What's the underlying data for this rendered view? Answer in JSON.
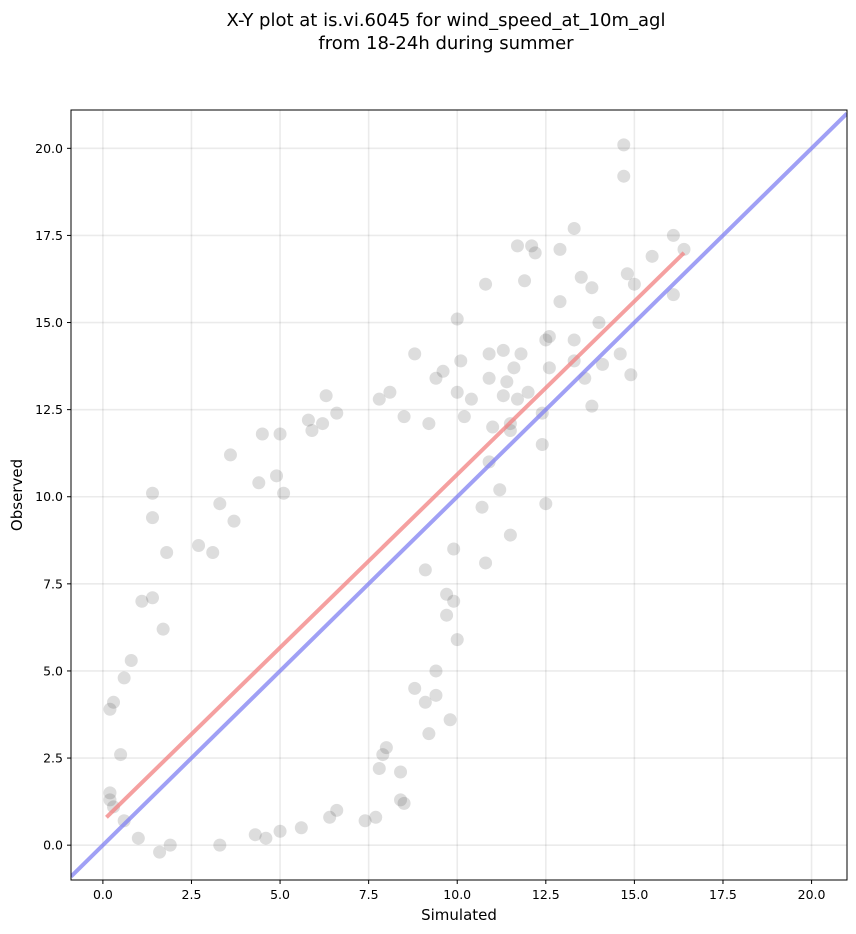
{
  "chart_data": {
    "type": "scatter",
    "title_lines": [
      "X-Y plot at is.vi.6045 for wind_speed_at_10m_agl",
      "from 18-24h during summer"
    ],
    "xlabel": "Simulated",
    "ylabel": "Observed",
    "xlim": [
      -0.9,
      21.0
    ],
    "ylim": [
      -1.0,
      21.1
    ],
    "xticks": [
      0.0,
      2.5,
      5.0,
      7.5,
      10.0,
      12.5,
      15.0,
      17.5,
      20.0
    ],
    "yticks": [
      0.0,
      2.5,
      5.0,
      7.5,
      10.0,
      12.5,
      15.0,
      17.5,
      20.0
    ],
    "xtick_labels": [
      "0.0",
      "2.5",
      "5.0",
      "7.5",
      "10.0",
      "12.5",
      "15.0",
      "17.5",
      "20.0"
    ],
    "ytick_labels": [
      "0.0",
      "2.5",
      "5.0",
      "7.5",
      "10.0",
      "12.5",
      "15.0",
      "17.5",
      "20.0"
    ],
    "grid": true,
    "point_color": "#444444",
    "fit_line": {
      "x": [
        0.1,
        16.4
      ],
      "y": [
        0.8,
        17.0
      ],
      "color": "#f28080"
    },
    "identity_line": {
      "x": [
        -0.9,
        21.0
      ],
      "y": [
        -0.9,
        21.0
      ],
      "color": "#8080f2"
    },
    "points": [
      [
        14.7,
        20.1
      ],
      [
        14.7,
        19.2
      ],
      [
        13.3,
        17.7
      ],
      [
        16.1,
        17.5
      ],
      [
        11.7,
        17.2
      ],
      [
        12.1,
        17.2
      ],
      [
        16.4,
        17.1
      ],
      [
        12.9,
        17.1
      ],
      [
        12.2,
        17.0
      ],
      [
        15.5,
        16.9
      ],
      [
        14.8,
        16.4
      ],
      [
        13.5,
        16.3
      ],
      [
        10.8,
        16.1
      ],
      [
        15.0,
        16.1
      ],
      [
        11.9,
        16.2
      ],
      [
        13.8,
        16.0
      ],
      [
        16.1,
        15.8
      ],
      [
        12.9,
        15.6
      ],
      [
        10.0,
        15.1
      ],
      [
        14.0,
        15.0
      ],
      [
        12.6,
        14.6
      ],
      [
        13.3,
        14.5
      ],
      [
        12.5,
        14.5
      ],
      [
        11.3,
        14.2
      ],
      [
        10.9,
        14.1
      ],
      [
        11.8,
        14.1
      ],
      [
        14.6,
        14.1
      ],
      [
        8.8,
        14.1
      ],
      [
        10.1,
        13.9
      ],
      [
        13.3,
        13.9
      ],
      [
        14.1,
        13.8
      ],
      [
        11.6,
        13.7
      ],
      [
        12.6,
        13.7
      ],
      [
        9.6,
        13.6
      ],
      [
        14.9,
        13.5
      ],
      [
        9.4,
        13.4
      ],
      [
        10.9,
        13.4
      ],
      [
        13.6,
        13.4
      ],
      [
        11.4,
        13.3
      ],
      [
        8.1,
        13.0
      ],
      [
        10.0,
        13.0
      ],
      [
        12.0,
        13.0
      ],
      [
        11.3,
        12.9
      ],
      [
        6.3,
        12.9
      ],
      [
        7.8,
        12.8
      ],
      [
        11.7,
        12.8
      ],
      [
        10.4,
        12.8
      ],
      [
        13.8,
        12.6
      ],
      [
        6.6,
        12.4
      ],
      [
        12.4,
        12.4
      ],
      [
        8.5,
        12.3
      ],
      [
        10.2,
        12.3
      ],
      [
        5.8,
        12.2
      ],
      [
        9.2,
        12.1
      ],
      [
        6.2,
        12.1
      ],
      [
        11.5,
        12.1
      ],
      [
        11.0,
        12.0
      ],
      [
        11.5,
        11.9
      ],
      [
        5.0,
        11.8
      ],
      [
        5.9,
        11.9
      ],
      [
        4.5,
        11.8
      ],
      [
        3.6,
        11.2
      ],
      [
        12.4,
        11.5
      ],
      [
        10.9,
        11.0
      ],
      [
        11.2,
        10.2
      ],
      [
        4.9,
        10.6
      ],
      [
        4.4,
        10.4
      ],
      [
        5.1,
        10.1
      ],
      [
        1.4,
        10.1
      ],
      [
        1.4,
        9.4
      ],
      [
        12.5,
        9.8
      ],
      [
        3.3,
        9.8
      ],
      [
        10.7,
        9.7
      ],
      [
        11.5,
        8.9
      ],
      [
        9.9,
        8.5
      ],
      [
        10.8,
        8.1
      ],
      [
        9.1,
        7.9
      ],
      [
        2.7,
        8.6
      ],
      [
        1.8,
        8.4
      ],
      [
        3.1,
        8.4
      ],
      [
        3.7,
        9.3
      ],
      [
        1.1,
        7.0
      ],
      [
        1.4,
        7.1
      ],
      [
        0.6,
        4.8
      ],
      [
        0.3,
        4.1
      ],
      [
        0.2,
        3.9
      ],
      [
        0.8,
        5.3
      ],
      [
        1.7,
        6.2
      ],
      [
        0.5,
        2.6
      ],
      [
        0.2,
        1.5
      ],
      [
        0.2,
        1.3
      ],
      [
        0.3,
        1.1
      ],
      [
        0.6,
        0.7
      ],
      [
        1.0,
        0.2
      ],
      [
        1.6,
        -0.2
      ],
      [
        1.9,
        0.0
      ],
      [
        3.3,
        0.0
      ],
      [
        4.3,
        0.3
      ],
      [
        4.6,
        0.2
      ],
      [
        5.0,
        0.4
      ],
      [
        5.6,
        0.5
      ],
      [
        6.4,
        0.8
      ],
      [
        6.6,
        1.0
      ],
      [
        7.4,
        0.7
      ],
      [
        7.7,
        0.8
      ],
      [
        8.4,
        1.3
      ],
      [
        8.5,
        1.2
      ],
      [
        9.2,
        3.2
      ],
      [
        9.8,
        3.6
      ],
      [
        8.4,
        2.1
      ],
      [
        7.9,
        2.6
      ],
      [
        7.8,
        2.2
      ],
      [
        9.4,
        4.3
      ],
      [
        10.0,
        5.9
      ],
      [
        9.7,
        6.6
      ],
      [
        9.9,
        7.0
      ],
      [
        9.7,
        7.2
      ],
      [
        9.4,
        5.0
      ],
      [
        9.1,
        4.1
      ],
      [
        8.8,
        4.5
      ],
      [
        8.0,
        2.8
      ]
    ]
  }
}
